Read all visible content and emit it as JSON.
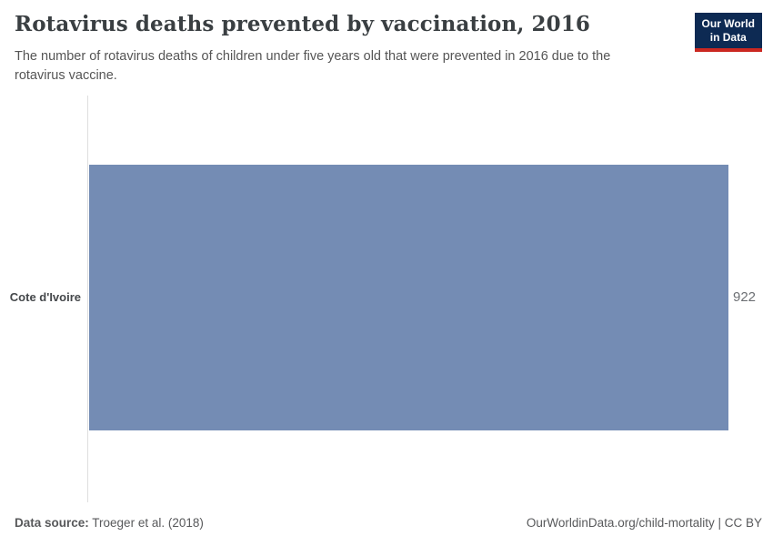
{
  "header": {
    "title": "Rotavirus deaths prevented by vaccination, 2016",
    "subtitle": "The number of rotavirus deaths of children under five years old that were prevented in 2016 due to the rotavirus vaccine.",
    "logo": {
      "line1": "Our World",
      "line2": "in Data"
    }
  },
  "chart_data": {
    "type": "bar",
    "orientation": "horizontal",
    "title": "Rotavirus deaths prevented by vaccination, 2016",
    "categories": [
      "Cote d'Ivoire"
    ],
    "values": [
      922
    ],
    "value_labels": [
      "922"
    ],
    "series": [
      {
        "name": "Rotavirus deaths prevented by vaccination",
        "values": [
          922
        ]
      }
    ],
    "xlabel": "",
    "ylabel": "",
    "xlim": [
      0,
      922
    ],
    "grid": false,
    "legend": "none",
    "bar_color": "#748cb4"
  },
  "footer": {
    "data_source_label": "Data source:",
    "data_source_value": "Troeger et al. (2018)",
    "attribution": "OurWorldinData.org/child-mortality | CC BY"
  },
  "colors": {
    "bar": "#748cb4",
    "logo_bg": "#0d2a53",
    "logo_red": "#cb2821",
    "axis_line": "#dedede",
    "title_text": "#3a3f42",
    "subtitle_text": "#555555",
    "footer_text": "#58595b"
  }
}
